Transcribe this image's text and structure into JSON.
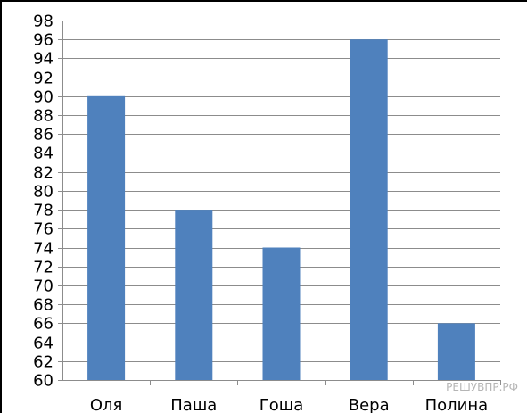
{
  "chart_data": {
    "type": "bar",
    "categories": [
      "Оля",
      "Паша",
      "Гоша",
      "Вера",
      "Полина"
    ],
    "values": [
      90,
      78,
      74,
      96,
      66
    ],
    "title": "",
    "xlabel": "",
    "ylabel": "",
    "ylim": [
      60,
      98
    ],
    "ytick_step": 2,
    "yticks": [
      "60",
      "62",
      "64",
      "66",
      "68",
      "70",
      "72",
      "74",
      "76",
      "78",
      "80",
      "82",
      "84",
      "86",
      "88",
      "90",
      "92",
      "94",
      "96",
      "98"
    ],
    "grid": true,
    "legend": "none",
    "bar_color": "#4f81bd",
    "grid_color": "#8c8c8c"
  },
  "watermark": "РЕШУВПР.РФ"
}
